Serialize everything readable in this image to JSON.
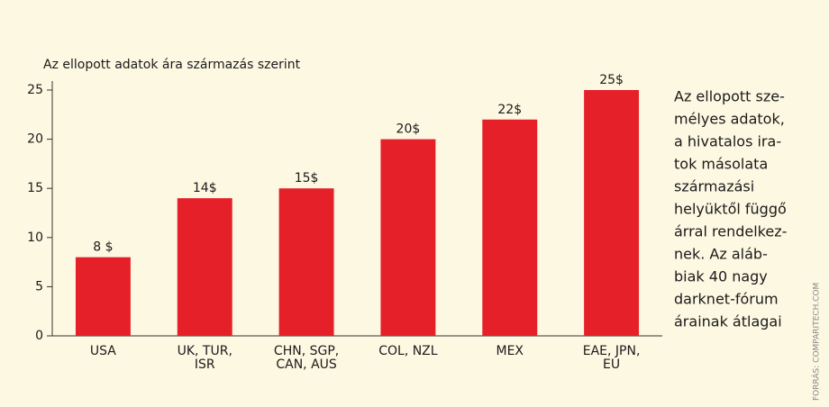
{
  "chart_data": {
    "type": "bar",
    "title": "Az ellopott adatok ára származás szerint",
    "categories": [
      "USA",
      "UK, TUR, ISR",
      "CHN, SGP, CAN, AUS",
      "COL, NZL",
      "MEX",
      "EAE, JPN, EU"
    ],
    "values": [
      8,
      14,
      15,
      20,
      22,
      25
    ],
    "value_labels": [
      "8 $",
      "14$",
      "15$",
      "20$",
      "22$",
      "25$"
    ],
    "color": "#e52028",
    "ylim": [
      0,
      25
    ],
    "yticks": [
      0,
      5,
      10,
      15,
      20,
      25
    ],
    "grid": false
  },
  "note": {
    "lines": [
      "Az ellopott sze-",
      "mélyes adatok,",
      "a hivatalos ira-",
      "tok másolata",
      "származási",
      "helyüktől függő",
      "árral rendelkez-",
      "nek. Az aláb-",
      "biak 40 nagy",
      "darknet-fórum",
      "árainak átlagai"
    ]
  },
  "source": "FORRÁS: COMPARITECH.COM"
}
